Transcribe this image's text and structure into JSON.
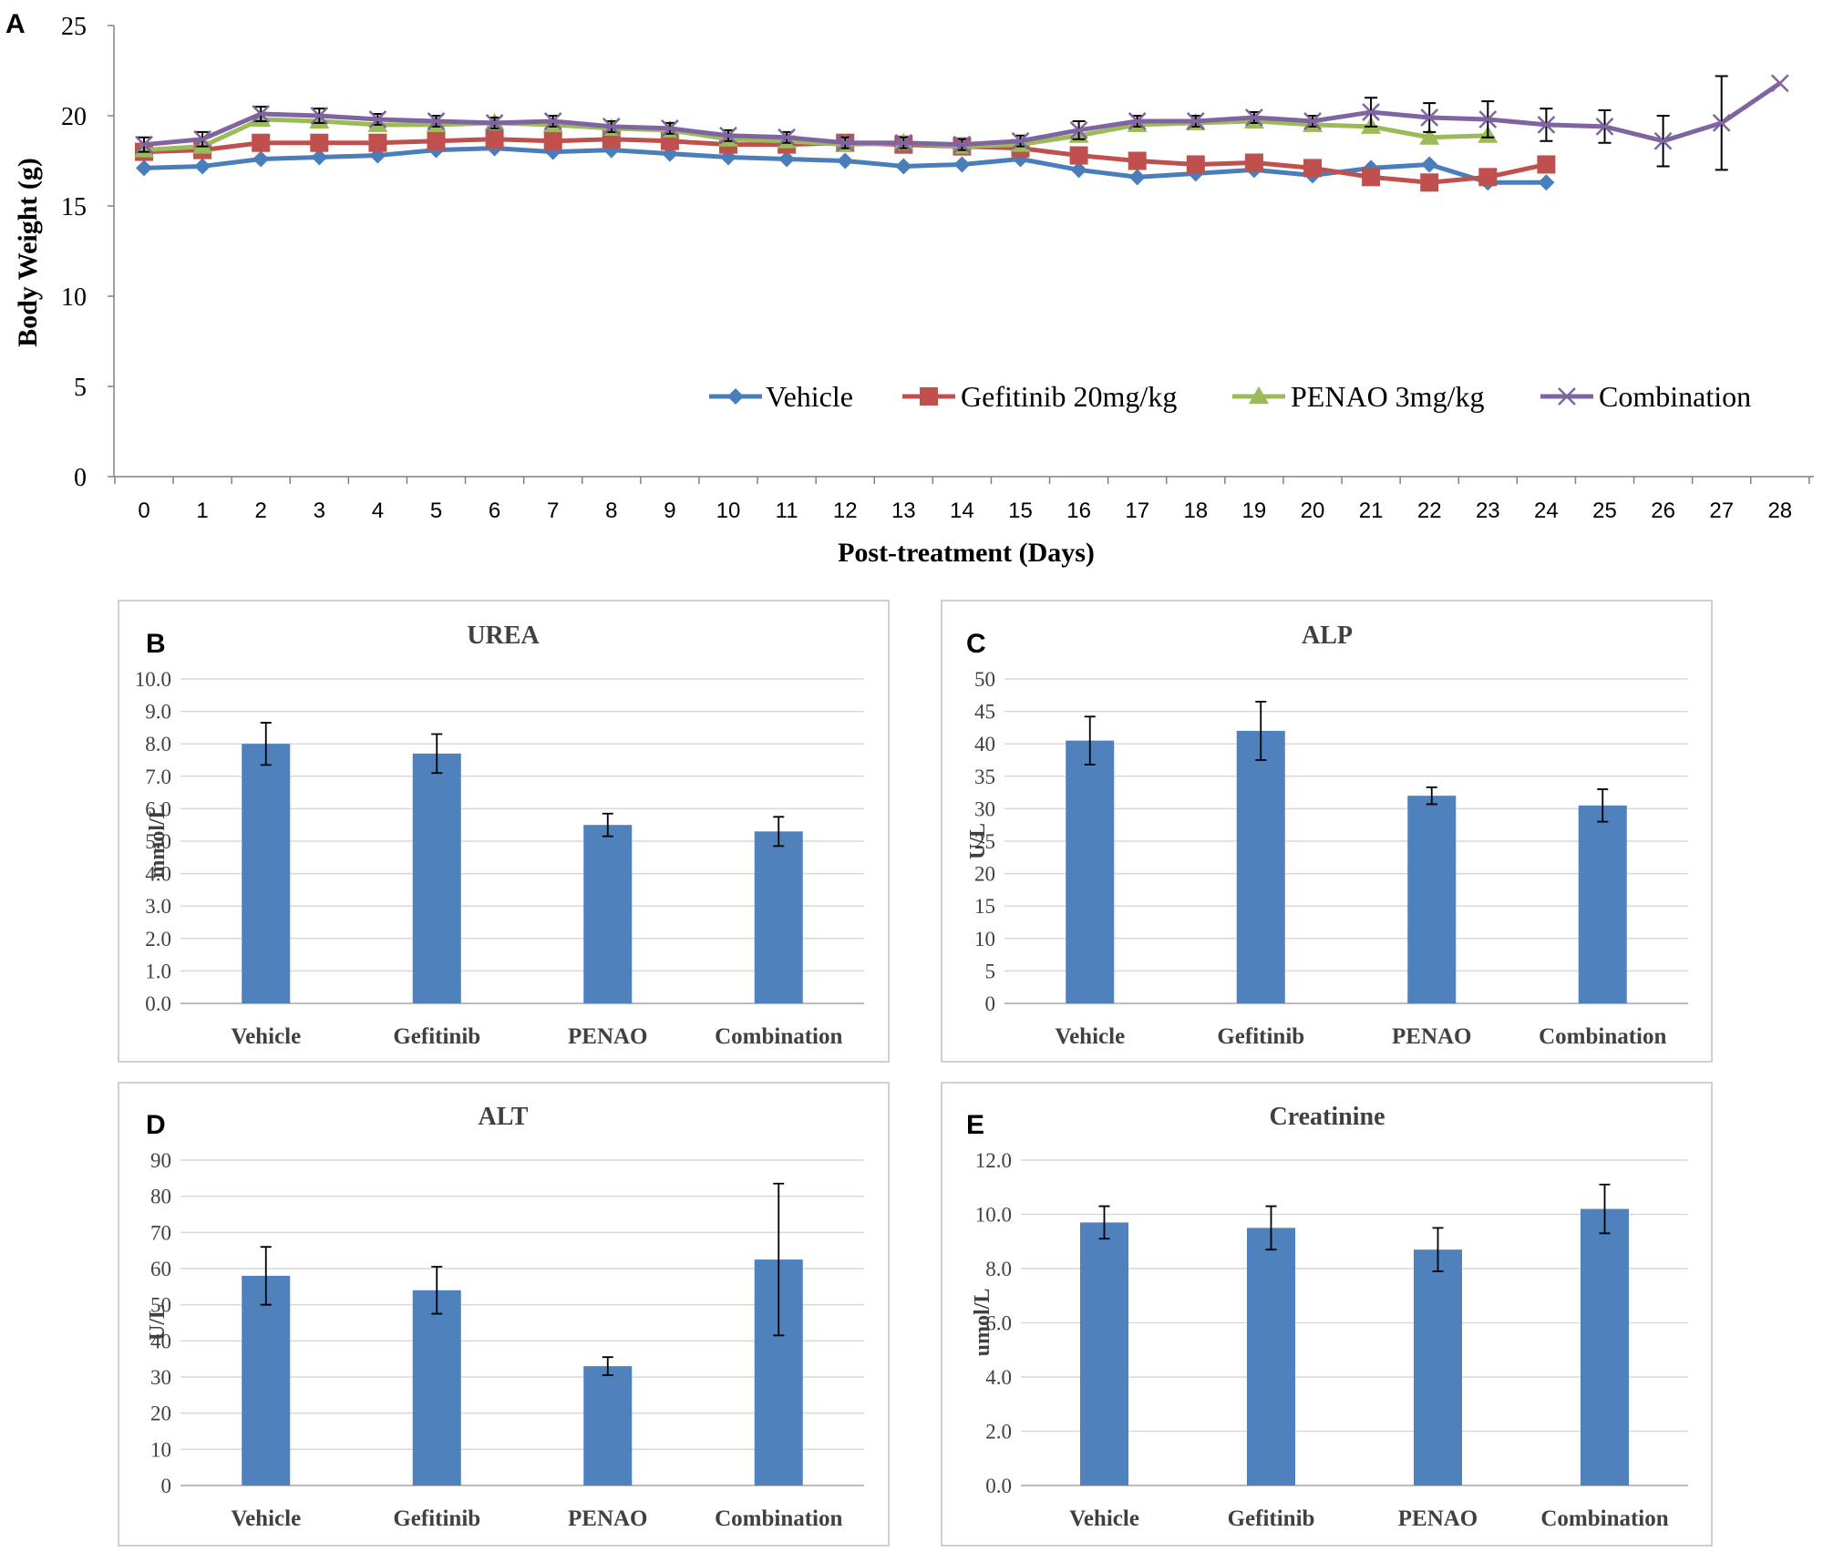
{
  "chart_data": [
    {
      "panel": "A",
      "type": "line",
      "xlabel": "Post-treatment (Days)",
      "ylabel": "Body Weight (g)",
      "ylim": [
        0,
        25
      ],
      "yticks": [
        0,
        5,
        10,
        15,
        20,
        25
      ],
      "x": [
        0,
        1,
        2,
        3,
        4,
        5,
        6,
        7,
        8,
        9,
        10,
        11,
        12,
        13,
        14,
        15,
        16,
        17,
        18,
        19,
        20,
        21,
        22,
        23,
        24,
        25,
        26,
        27,
        28
      ],
      "legend_position": "bottom-right",
      "grid": false,
      "series": [
        {
          "name": "Vehicle",
          "color": "#4a7ebb",
          "marker": "diamond",
          "x": [
            0,
            1,
            2,
            3,
            4,
            5,
            6,
            7,
            8,
            9,
            10,
            11,
            12,
            13,
            14,
            15,
            16,
            17,
            18,
            19,
            20,
            21,
            22,
            23,
            24
          ],
          "y": [
            17.1,
            17.2,
            17.6,
            17.7,
            17.8,
            18.1,
            18.2,
            18.0,
            18.1,
            17.9,
            17.7,
            17.6,
            17.5,
            17.2,
            17.3,
            17.6,
            17.0,
            16.6,
            16.8,
            17.0,
            16.7,
            17.1,
            17.3,
            16.3,
            16.3
          ]
        },
        {
          "name": "Gefitinib 20mg/kg",
          "color": "#c0504d",
          "marker": "square",
          "x": [
            0,
            1,
            2,
            3,
            4,
            5,
            6,
            7,
            8,
            9,
            10,
            11,
            12,
            13,
            14,
            15,
            16,
            17,
            18,
            19,
            20,
            21,
            22,
            23,
            24
          ],
          "y": [
            18.0,
            18.1,
            18.5,
            18.5,
            18.5,
            18.6,
            18.7,
            18.6,
            18.7,
            18.6,
            18.4,
            18.4,
            18.5,
            18.4,
            18.3,
            18.2,
            17.8,
            17.5,
            17.3,
            17.4,
            17.1,
            16.6,
            16.3,
            16.6,
            17.3
          ]
        },
        {
          "name": "PENAO 3mg/kg",
          "color": "#9bbb59",
          "marker": "triangle",
          "x": [
            0,
            1,
            2,
            3,
            4,
            5,
            6,
            7,
            8,
            9,
            10,
            11,
            12,
            13,
            14,
            15,
            16,
            17,
            18,
            19,
            20,
            21,
            22,
            23
          ],
          "y": [
            18.1,
            18.3,
            19.8,
            19.7,
            19.5,
            19.5,
            19.6,
            19.5,
            19.3,
            19.2,
            18.7,
            18.6,
            18.4,
            18.5,
            18.3,
            18.4,
            18.9,
            19.5,
            19.6,
            19.7,
            19.5,
            19.4,
            18.8,
            18.9
          ]
        },
        {
          "name": "Combination",
          "color": "#8064a2",
          "marker": "x",
          "x": [
            0,
            1,
            2,
            3,
            4,
            5,
            6,
            7,
            8,
            9,
            10,
            11,
            12,
            13,
            14,
            15,
            16,
            17,
            18,
            19,
            20,
            21,
            22,
            23,
            24,
            25,
            26,
            27,
            28
          ],
          "y": [
            18.4,
            18.7,
            20.1,
            20.0,
            19.8,
            19.7,
            19.6,
            19.7,
            19.4,
            19.3,
            18.9,
            18.8,
            18.5,
            18.5,
            18.4,
            18.6,
            19.2,
            19.7,
            19.7,
            19.9,
            19.7,
            20.2,
            19.9,
            19.8,
            19.5,
            19.4,
            18.6,
            19.6,
            21.8
          ],
          "err": [
            0.4,
            0.4,
            0.4,
            0.4,
            0.3,
            0.3,
            0.3,
            0.3,
            0.3,
            0.3,
            0.3,
            0.3,
            0.3,
            0.3,
            0.3,
            0.3,
            0.5,
            0.3,
            0.3,
            0.3,
            0.3,
            0.8,
            0.8,
            1.0,
            0.9,
            0.9,
            1.4,
            2.6,
            0.0
          ]
        }
      ]
    },
    {
      "panel": "B",
      "type": "bar",
      "title": "UREA",
      "ylabel": "mmol/L",
      "categories": [
        "Vehicle",
        "Gefitinib",
        "PENAO",
        "Combination"
      ],
      "values": [
        8.0,
        7.7,
        5.5,
        5.3
      ],
      "err": [
        0.65,
        0.6,
        0.35,
        0.45
      ],
      "ylim": [
        0,
        10
      ],
      "yticks": [
        "0.0",
        "1.0",
        "2.0",
        "3.0",
        "4.0",
        "5.0",
        "6.0",
        "7.0",
        "8.0",
        "9.0",
        "10.0"
      ],
      "color": "#4f81bd",
      "grid": true
    },
    {
      "panel": "C",
      "type": "bar",
      "title": "ALP",
      "ylabel": "U/L",
      "categories": [
        "Vehicle",
        "Gefitinib",
        "PENAO",
        "Combination"
      ],
      "values": [
        40.5,
        42,
        32,
        30.5
      ],
      "err": [
        3.7,
        4.5,
        1.3,
        2.5
      ],
      "ylim": [
        0,
        50
      ],
      "yticks": [
        "0",
        "5",
        "10",
        "15",
        "20",
        "25",
        "30",
        "35",
        "40",
        "45",
        "50"
      ],
      "color": "#4f81bd",
      "grid": true
    },
    {
      "panel": "D",
      "type": "bar",
      "title": "ALT",
      "ylabel": "U/L",
      "categories": [
        "Vehicle",
        "Gefitinib",
        "PENAO",
        "Combination"
      ],
      "values": [
        58,
        54,
        33,
        62.5
      ],
      "err": [
        8,
        6.5,
        2.5,
        21
      ],
      "ylim": [
        0,
        90
      ],
      "yticks": [
        "0",
        "10",
        "20",
        "30",
        "40",
        "50",
        "60",
        "70",
        "80",
        "90"
      ],
      "color": "#4f81bd",
      "grid": true
    },
    {
      "panel": "E",
      "type": "bar",
      "title": "Creatinine",
      "ylabel": "umol/L",
      "categories": [
        "Vehicle",
        "Gefitinib",
        "PENAO",
        "Combination"
      ],
      "values": [
        9.7,
        9.5,
        8.7,
        10.2
      ],
      "err": [
        0.6,
        0.8,
        0.8,
        0.9
      ],
      "ylim": [
        0,
        12
      ],
      "yticks": [
        "0.0",
        "2.0",
        "4.0",
        "6.0",
        "8.0",
        "10.0",
        "12.0"
      ],
      "color": "#4f81bd",
      "grid": true
    }
  ]
}
